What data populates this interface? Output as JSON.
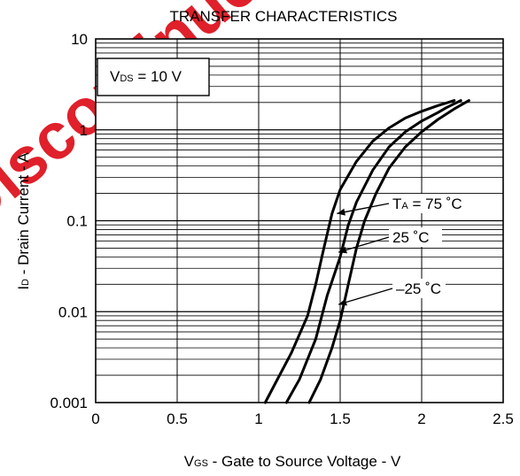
{
  "watermark": {
    "text": "Discontinued Product",
    "color": "#e0202a"
  },
  "chart_data": {
    "type": "line",
    "title": "TRANSFER CHARACTERISTICS",
    "xlabel": {
      "main": "V",
      "sub": "GS",
      "rest": " - Gate to Source Voltage - V"
    },
    "ylabel": {
      "main": "I",
      "sub": "D",
      "rest": " - Drain Current - A"
    },
    "xlim": [
      0,
      2.5
    ],
    "ylim": [
      0.001,
      10
    ],
    "yscale": "log",
    "grid": true,
    "x_ticks": [
      "0",
      "0.5",
      "1",
      "1.5",
      "2",
      "2.5"
    ],
    "y_ticks": [
      "0.001",
      "0.01",
      "0.1",
      "1",
      "10"
    ],
    "condition": {
      "main": "V",
      "sub": "DS",
      "rest": " = 10 V"
    },
    "series": [
      {
        "name": "T = 75 ˚C",
        "label": {
          "main": "T",
          "sub": "A",
          "rest": " = 75 ˚C"
        },
        "points": [
          [
            1.04,
            0.001
          ],
          [
            1.1,
            0.0016
          ],
          [
            1.2,
            0.0035
          ],
          [
            1.3,
            0.009
          ],
          [
            1.35,
            0.02
          ],
          [
            1.4,
            0.05
          ],
          [
            1.45,
            0.12
          ],
          [
            1.5,
            0.22
          ],
          [
            1.6,
            0.45
          ],
          [
            1.7,
            0.75
          ],
          [
            1.8,
            1.05
          ],
          [
            1.9,
            1.35
          ],
          [
            2.0,
            1.6
          ],
          [
            2.1,
            1.85
          ],
          [
            2.2,
            2.1
          ]
        ]
      },
      {
        "name": "25 ˚C",
        "label": {
          "main": "25 ˚C",
          "sub": "",
          "rest": ""
        },
        "points": [
          [
            1.17,
            0.001
          ],
          [
            1.25,
            0.0018
          ],
          [
            1.35,
            0.005
          ],
          [
            1.42,
            0.015
          ],
          [
            1.5,
            0.04
          ],
          [
            1.55,
            0.09
          ],
          [
            1.6,
            0.16
          ],
          [
            1.7,
            0.36
          ],
          [
            1.8,
            0.65
          ],
          [
            1.9,
            0.95
          ],
          [
            2.0,
            1.25
          ],
          [
            2.1,
            1.55
          ],
          [
            2.15,
            1.75
          ],
          [
            2.24,
            2.1
          ]
        ]
      },
      {
        "name": "-25 ˚C",
        "label": {
          "main": "–25 ˚C",
          "sub": "",
          "rest": ""
        },
        "points": [
          [
            1.31,
            0.001
          ],
          [
            1.38,
            0.0018
          ],
          [
            1.45,
            0.004
          ],
          [
            1.5,
            0.008
          ],
          [
            1.55,
            0.02
          ],
          [
            1.6,
            0.05
          ],
          [
            1.65,
            0.1
          ],
          [
            1.72,
            0.2
          ],
          [
            1.8,
            0.38
          ],
          [
            1.9,
            0.65
          ],
          [
            2.0,
            0.95
          ],
          [
            2.1,
            1.3
          ],
          [
            2.2,
            1.7
          ],
          [
            2.29,
            2.1
          ]
        ]
      }
    ],
    "annotations": [
      {
        "series": 0,
        "at": [
          1.48,
          0.12
        ]
      },
      {
        "series": 1,
        "at": [
          1.49,
          0.045
        ]
      },
      {
        "series": 2,
        "at": [
          1.49,
          0.012
        ]
      }
    ]
  }
}
